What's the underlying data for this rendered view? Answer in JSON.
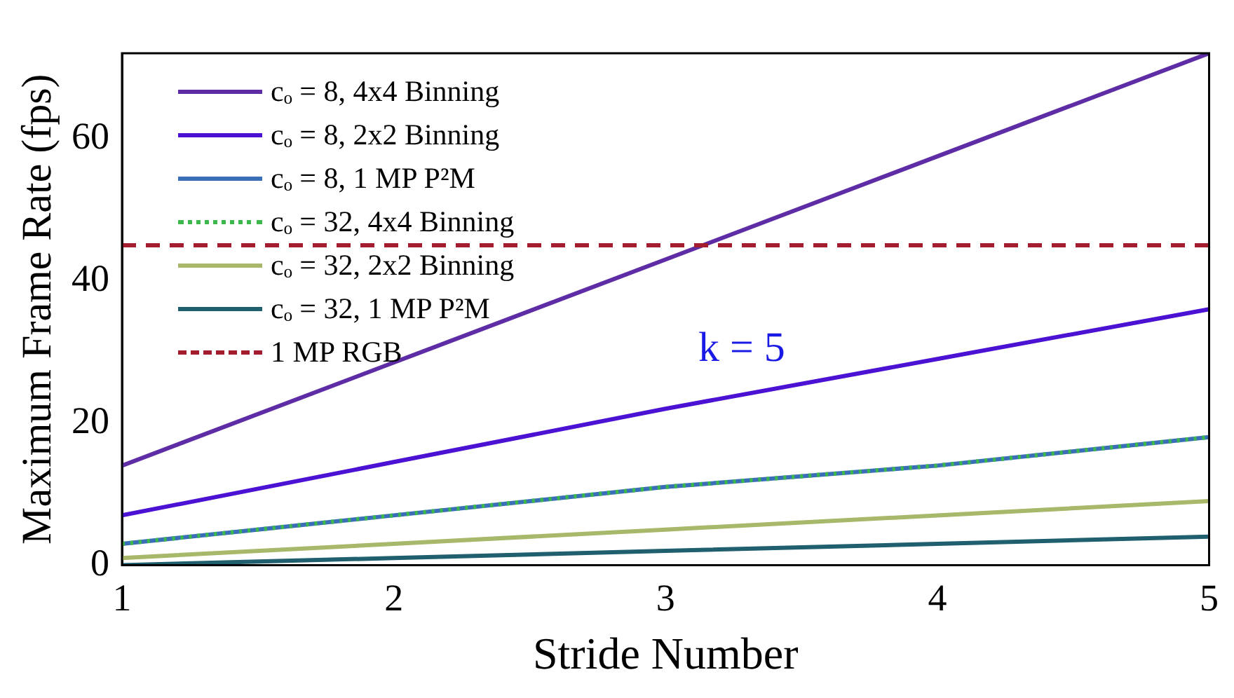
{
  "chart_data": {
    "type": "line",
    "xlabel": "Stride Number",
    "ylabel": "Maximum Frame Rate (fps)",
    "x": [
      1,
      2,
      3,
      4,
      5
    ],
    "xlim": [
      1,
      5
    ],
    "xticks": [
      1,
      2,
      3,
      4,
      5
    ],
    "ylim": [
      0,
      72
    ],
    "yticks": [
      0,
      20,
      40,
      60
    ],
    "grid": false,
    "legend": "top left",
    "marker": "none",
    "series": [
      {
        "name": "cₒ = 8, 4x4 Binning",
        "color": "#5e2ca5",
        "values": [
          14,
          28.5,
          43,
          57.5,
          72
        ],
        "line_style": "solid"
      },
      {
        "name": "cₒ = 8, 2x2 Binning",
        "color": "#4b12d4",
        "values": [
          7,
          14.5,
          22,
          29,
          36
        ],
        "line_style": "solid"
      },
      {
        "name": "cₒ = 8, 1 MP P²M",
        "color": "#3a6fb8",
        "values": [
          3,
          7,
          11,
          14,
          18
        ],
        "line_style": "solid"
      },
      {
        "name": "cₒ = 32, 4x4 Binning",
        "color": "#3cb94a",
        "values": [
          3,
          7,
          11,
          14,
          18
        ],
        "line_style": "dotted"
      },
      {
        "name": "cₒ = 32, 2x2 Binning",
        "color": "#a8b86a",
        "values": [
          1,
          3,
          5,
          7,
          9
        ],
        "line_style": "solid"
      },
      {
        "name": "cₒ = 32, 1 MP P²M",
        "color": "#1f5f6e",
        "values": [
          0,
          1,
          2,
          3,
          4
        ],
        "line_style": "solid"
      }
    ],
    "ref_lines": [
      {
        "axis": "y",
        "value": 45,
        "label": "1 MP RGB",
        "color": "#a31d2e",
        "line_style": "dashed"
      }
    ],
    "annotations": [
      "k = 5"
    ]
  }
}
